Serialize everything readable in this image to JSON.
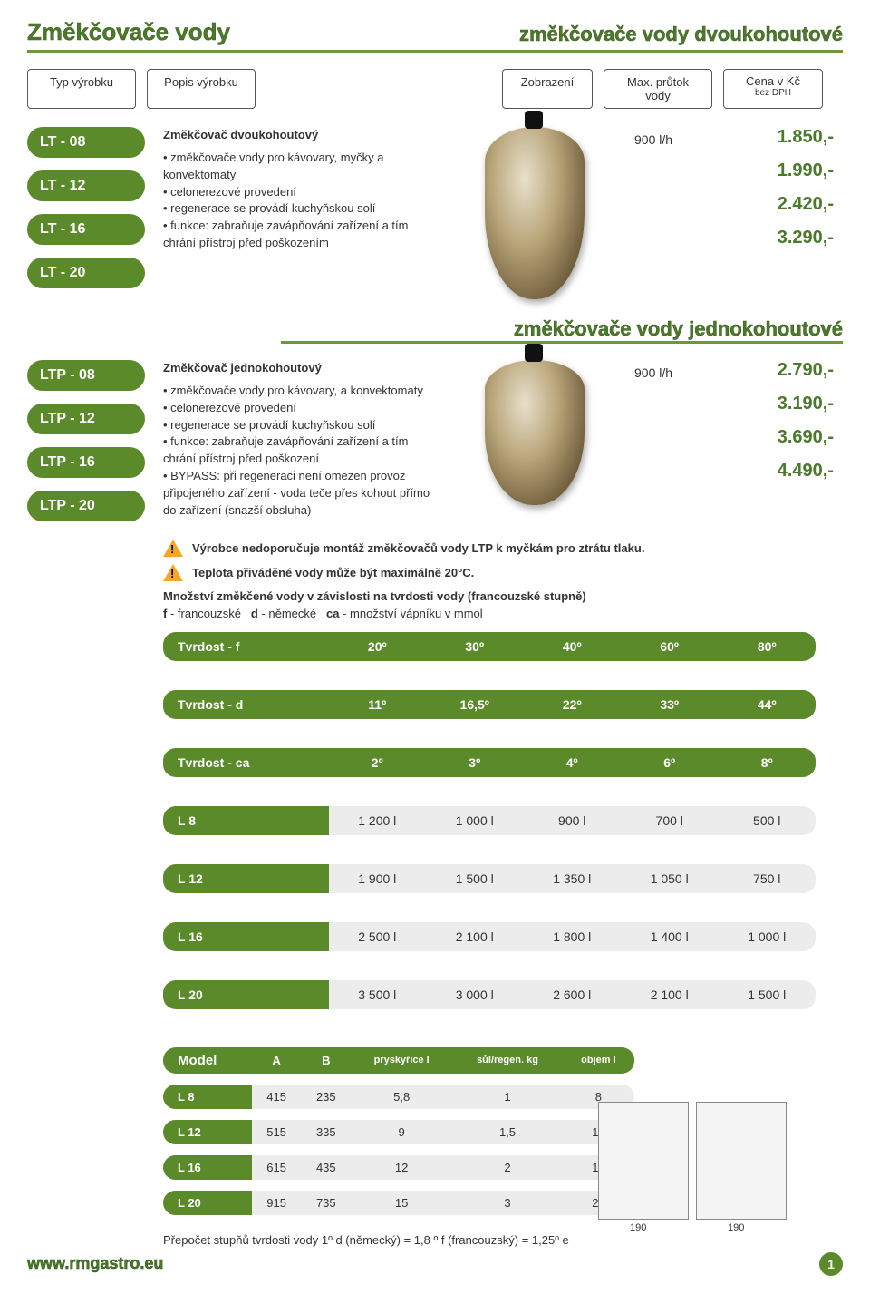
{
  "header": {
    "title_left": "Změkčovače vody",
    "title_right": "změkčovače vody dvoukohoutové"
  },
  "columns": {
    "typ": "Typ výrobku",
    "popis": "Popis výrobku",
    "zobrazeni": "Zobrazení",
    "max": "Max. průtok vody",
    "cena": "Cena v Kč",
    "cena_sub": "bez DPH"
  },
  "section1": {
    "codes": [
      "LT - 08",
      "LT - 12",
      "LT - 16",
      "LT - 20"
    ],
    "desc_title": "Změkčovač dvoukohoutový",
    "desc_lines": [
      "• změkčovače vody pro kávovary, myčky a konvektomaty",
      "• celonerezové provedení",
      "• regenerace se provádí kuchyňskou solí",
      "• funkce: zabraňuje zavápňování zařízení a tím chrání přístroj před poškozením"
    ],
    "flow": "900 l/h",
    "prices": [
      "1.850,-",
      "1.990,-",
      "2.420,-",
      "3.290,-"
    ]
  },
  "section2_title": "změkčovače vody jednokohoutové",
  "section2": {
    "codes": [
      "LTP - 08",
      "LTP - 12",
      "LTP - 16",
      "LTP - 20"
    ],
    "desc_title": "Změkčovač jednokohoutový",
    "desc_lines": [
      "• změkčovače vody pro kávovary, a konvektomaty",
      "• celonerezové provedení",
      "• regenerace se provádí kuchyňskou solí",
      "• funkce: zabraňuje zavápňování zařízení a tím chrání přístroj před poškození",
      "• BYPASS: při regeneraci není omezen provoz připojeného zařízení - voda teče přes kohout přímo do zařízení (snazší obsluha)"
    ],
    "flow": "900 l/h",
    "prices": [
      "2.790,-",
      "3.190,-",
      "3.690,-",
      "4.490,-"
    ]
  },
  "warnings": {
    "w1": "Výrobce nedoporučuje montáž změkčovačů vody LTP k myčkám pro ztrátu tlaku.",
    "w2": "Teplota přiváděné vody může být maximálně 20°C."
  },
  "intro": {
    "line1": "Množství změkčené vody v závislosti na tvrdosti vody (francouzské stupně)",
    "line2_f": "f",
    "line2_ft": "- francouzské",
    "line2_d": "d",
    "line2_dt": "- německé",
    "line2_ca": "ca",
    "line2_cat": "- množství vápníku v mmol"
  },
  "hardness": {
    "rows_hdr": [
      {
        "label": "Tvrdost - f",
        "vals": [
          "20º",
          "30º",
          "40º",
          "60º",
          "80º"
        ]
      },
      {
        "label": "Tvrdost - d",
        "vals": [
          "11º",
          "16,5º",
          "22º",
          "33º",
          "44º"
        ]
      },
      {
        "label": "Tvrdost - ca",
        "vals": [
          "2º",
          "3º",
          "4º",
          "6º",
          "8º"
        ]
      }
    ],
    "rows_data": [
      {
        "label": "L 8",
        "vals": [
          "1 200 l",
          "1 000 l",
          "900 l",
          "700 l",
          "500 l"
        ]
      },
      {
        "label": "L 12",
        "vals": [
          "1 900 l",
          "1 500 l",
          "1 350 l",
          "1 050 l",
          "750 l"
        ]
      },
      {
        "label": "L 16",
        "vals": [
          "2 500 l",
          "2 100 l",
          "1 800 l",
          "1 400 l",
          "1 000 l"
        ]
      },
      {
        "label": "L 20",
        "vals": [
          "3 500 l",
          "3 000 l",
          "2 600 l",
          "2 100 l",
          "1 500 l"
        ]
      }
    ]
  },
  "model": {
    "hdr": [
      "Model",
      "A",
      "B",
      "pryskyřice l",
      "sůl/regen. kg",
      "objem l"
    ],
    "rows": [
      {
        "label": "L 8",
        "vals": [
          "415",
          "235",
          "5,8",
          "1",
          "8"
        ]
      },
      {
        "label": "L 12",
        "vals": [
          "515",
          "335",
          "9",
          "1,5",
          "12"
        ]
      },
      {
        "label": "L 16",
        "vals": [
          "615",
          "435",
          "12",
          "2",
          "16"
        ]
      },
      {
        "label": "L 20",
        "vals": [
          "915",
          "735",
          "15",
          "3",
          "20"
        ]
      }
    ]
  },
  "footer_note": "Přepočet stupňů tvrdosti vody 1º d (německý) = 1,8 º f (francouzský) = 1,25º e",
  "footer_url": "www.rmgastro.eu",
  "page_num": "1",
  "colors": {
    "green": "#5a8a2a",
    "green_text": "#4a7a2a",
    "grey_row": "#ececec",
    "warn": "#f5a623"
  }
}
